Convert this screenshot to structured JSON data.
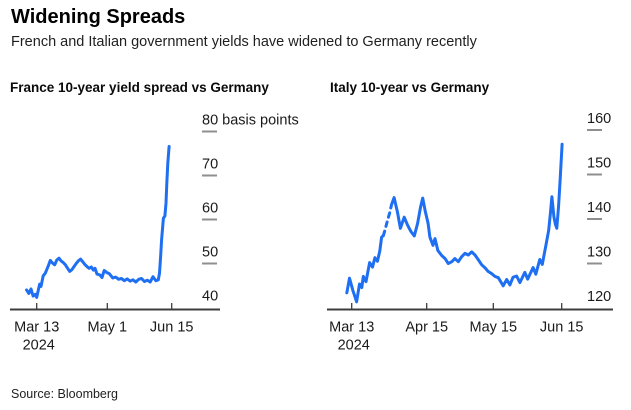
{
  "header": {
    "title": "Widening Spreads",
    "subtitle": "French and Italian government yields have widened to Germany recently"
  },
  "source": "Source: Bloomberg",
  "chart_data": [
    {
      "type": "line",
      "title": "France 10-year yield spread vs Germany",
      "unit": "basis points",
      "color": "#1f6ff2",
      "ylim": [
        40,
        80
      ],
      "yticks": [
        40,
        50,
        60,
        70,
        80
      ],
      "ytick_labels": [
        "40",
        "50",
        "60",
        "70",
        "80 basis points"
      ],
      "xticks": [
        {
          "label": "Mar 13",
          "day": 0,
          "year": "2024"
        },
        {
          "label": "May 1",
          "day": 49
        },
        {
          "label": "Jun 15",
          "day": 94
        }
      ],
      "dash_ranges": [],
      "points": [
        [
          -7,
          44.0
        ],
        [
          -5.5,
          43.2
        ],
        [
          -4,
          44.2
        ],
        [
          -2.5,
          42.6
        ],
        [
          -1,
          43.0
        ],
        [
          0,
          42.3
        ],
        [
          2,
          45.3
        ],
        [
          3,
          44.8
        ],
        [
          4.5,
          47.2
        ],
        [
          6,
          47.8
        ],
        [
          8,
          49.4
        ],
        [
          9.5,
          50.7
        ],
        [
          11,
          50.1
        ],
        [
          12.5,
          49.7
        ],
        [
          14,
          50.8
        ],
        [
          15.5,
          51.2
        ],
        [
          17,
          50.6
        ],
        [
          18.5,
          50.2
        ],
        [
          20,
          49.7
        ],
        [
          21.5,
          48.9
        ],
        [
          23,
          48.2
        ],
        [
          24.5,
          48.6
        ],
        [
          26,
          49.3
        ],
        [
          27.5,
          50.0
        ],
        [
          29,
          50.6
        ],
        [
          30.5,
          51.0
        ],
        [
          32,
          50.4
        ],
        [
          33.5,
          49.8
        ],
        [
          35,
          49.3
        ],
        [
          36.5,
          48.9
        ],
        [
          38,
          49.2
        ],
        [
          39.5,
          48.5
        ],
        [
          40.6,
          48.9
        ],
        [
          42,
          47.6
        ],
        [
          44,
          47.4
        ],
        [
          45.5,
          46.8
        ],
        [
          47,
          48.4
        ],
        [
          49,
          47.9
        ],
        [
          50.5,
          47.7
        ],
        [
          53,
          46.7
        ],
        [
          55,
          46.9
        ],
        [
          57,
          46.4
        ],
        [
          59,
          46.6
        ],
        [
          61,
          46.1
        ],
        [
          63,
          46.5
        ],
        [
          65,
          46.0
        ],
        [
          67,
          46.3
        ],
        [
          69,
          45.8
        ],
        [
          71,
          46.4
        ],
        [
          73,
          46.6
        ],
        [
          75,
          45.9
        ],
        [
          77,
          46.2
        ],
        [
          79,
          45.8
        ],
        [
          81,
          47.0
        ],
        [
          83,
          46.1
        ],
        [
          84.7,
          46.3
        ],
        [
          85.5,
          47.8
        ],
        [
          86.3,
          51.5
        ],
        [
          87,
          55.4
        ],
        [
          87.7,
          58.4
        ],
        [
          88.2,
          60.3
        ],
        [
          89.3,
          60.8
        ],
        [
          90,
          63.7
        ],
        [
          90.6,
          68.2
        ],
        [
          91.3,
          72.8
        ],
        [
          92.2,
          76.6
        ]
      ]
    },
    {
      "type": "line",
      "title": "Italy 10-year vs Germany",
      "unit": "basis points",
      "color": "#1f6ff2",
      "ylim": [
        120,
        160
      ],
      "yticks": [
        120,
        130,
        140,
        150,
        160
      ],
      "ytick_labels": [
        "120",
        "130",
        "140",
        "150",
        "160"
      ],
      "xticks": [
        {
          "label": "Mar 13",
          "day": 0,
          "year": "2024"
        },
        {
          "label": "Apr 15",
          "day": 33
        },
        {
          "label": "May 15",
          "day": 63
        },
        {
          "label": "Jun 15",
          "day": 94
        }
      ],
      "dash_ranges": [
        [
          14.2,
          17.8
        ]
      ],
      "points": [
        [
          -2.2,
          123.4
        ],
        [
          -1,
          126.7
        ],
        [
          0.5,
          124.0
        ],
        [
          2.2,
          121.4
        ],
        [
          3.5,
          125.4
        ],
        [
          4.5,
          124.6
        ],
        [
          5.2,
          127.1
        ],
        [
          6.4,
          125.9
        ],
        [
          8,
          130.2
        ],
        [
          9.3,
          129.2
        ],
        [
          10.4,
          131.3
        ],
        [
          11.5,
          130.5
        ],
        [
          12.6,
          132.8
        ],
        [
          13.4,
          135.9
        ],
        [
          14.2,
          136.3
        ],
        [
          15,
          137.7
        ],
        [
          16,
          139.6
        ],
        [
          17,
          141.4
        ],
        [
          17.8,
          143.2
        ],
        [
          19,
          144.8
        ],
        [
          20.5,
          141.5
        ],
        [
          21.8,
          137.9
        ],
        [
          23.5,
          140.4
        ],
        [
          25,
          138.6
        ],
        [
          26.5,
          137.2
        ],
        [
          28,
          136.2
        ],
        [
          29.5,
          139.0
        ],
        [
          30.8,
          142.6
        ],
        [
          31.8,
          144.7
        ],
        [
          33,
          141.6
        ],
        [
          34.2,
          139.0
        ],
        [
          35,
          135.9
        ],
        [
          36.4,
          134.1
        ],
        [
          37.3,
          135.6
        ],
        [
          38.6,
          132.9
        ],
        [
          40.3,
          131.8
        ],
        [
          41.8,
          131.1
        ],
        [
          43.2,
          130.0
        ],
        [
          44.8,
          130.4
        ],
        [
          46.2,
          131.1
        ],
        [
          47.7,
          130.4
        ],
        [
          49.2,
          131.5
        ],
        [
          50.7,
          132.3
        ],
        [
          52.2,
          131.9
        ],
        [
          53.7,
          132.6
        ],
        [
          55.2,
          131.9
        ],
        [
          56.7,
          130.8
        ],
        [
          58.2,
          129.7
        ],
        [
          59.7,
          129.0
        ],
        [
          61.1,
          128.2
        ],
        [
          62.7,
          127.7
        ],
        [
          64.1,
          127.1
        ],
        [
          65.6,
          126.8
        ],
        [
          67.8,
          125.0
        ],
        [
          69.4,
          126.4
        ],
        [
          70.8,
          125.2
        ],
        [
          72.2,
          126.9
        ],
        [
          73.8,
          127.2
        ],
        [
          75.3,
          125.7
        ],
        [
          77.5,
          128.0
        ],
        [
          78.8,
          126.5
        ],
        [
          81.2,
          129.1
        ],
        [
          82.4,
          127.6
        ],
        [
          84.2,
          130.9
        ],
        [
          85.3,
          129.8
        ],
        [
          87.2,
          134.8
        ],
        [
          88.2,
          137.5
        ],
        [
          89,
          141.5
        ],
        [
          89.6,
          145.0
        ],
        [
          90.5,
          140.5
        ],
        [
          91.2,
          138.8
        ],
        [
          91.8,
          137.9
        ],
        [
          92.6,
          143.0
        ],
        [
          93.3,
          148.7
        ],
        [
          93.8,
          153.5
        ],
        [
          94.2,
          156.8
        ]
      ]
    }
  ]
}
